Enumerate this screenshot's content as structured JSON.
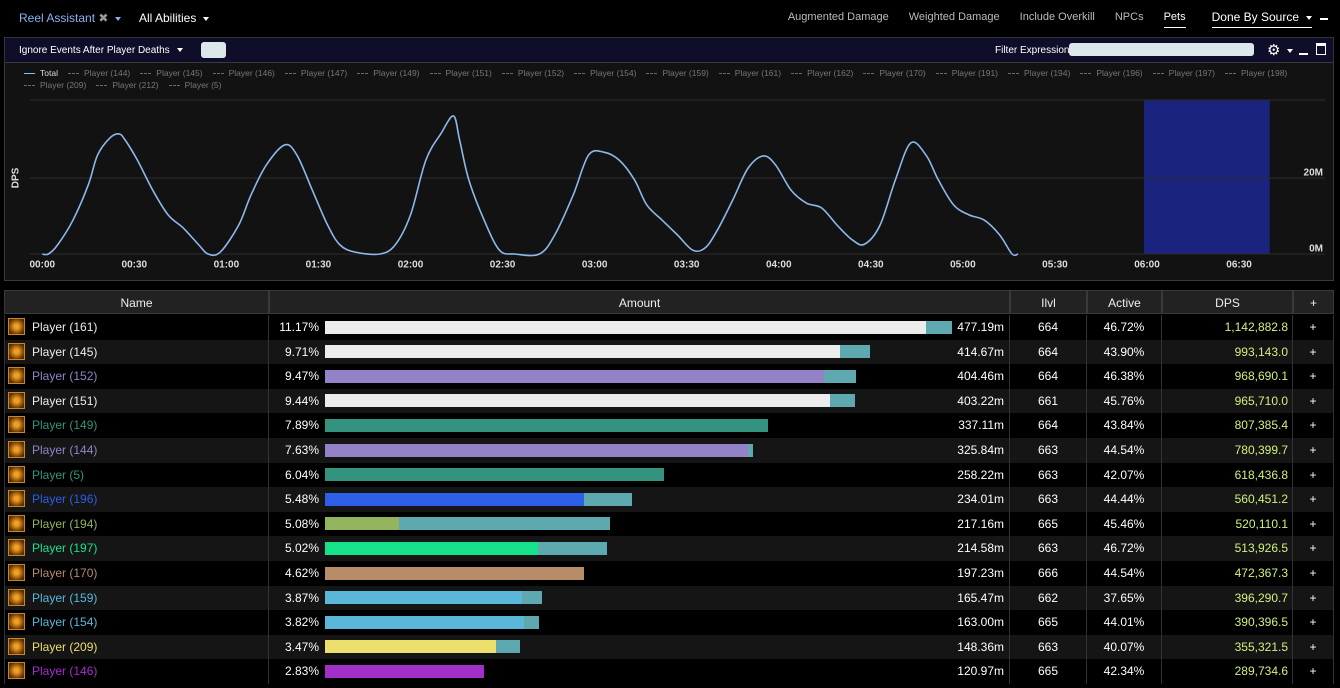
{
  "toolbar": {
    "report": "Reel Assistant",
    "close": "✖",
    "abilities": "All Abilities",
    "tabs": [
      "Augmented Damage",
      "Weighted Damage",
      "Include Overkill",
      "NPCs",
      "Pets"
    ],
    "active_tab": "Pets",
    "source": "Done By Source"
  },
  "filter_bar": {
    "deaths": "Ignore Events After Player Deaths",
    "filter_label": "Filter Expression:"
  },
  "graph": {
    "type": "line",
    "y_label": "DPS",
    "xlim": [
      -4,
      418
    ],
    "ylim": [
      0,
      40
    ],
    "xticks": [
      {
        "value": 0,
        "label": "00:00"
      },
      {
        "value": 30,
        "label": "00:30"
      },
      {
        "value": 60,
        "label": "01:00"
      },
      {
        "value": 90,
        "label": "01:30"
      },
      {
        "value": 120,
        "label": "02:00"
      },
      {
        "value": 150,
        "label": "02:30"
      },
      {
        "value": 180,
        "label": "03:00"
      },
      {
        "value": 210,
        "label": "03:30"
      },
      {
        "value": 240,
        "label": "04:00"
      },
      {
        "value": 270,
        "label": "04:30"
      },
      {
        "value": 300,
        "label": "05:00"
      },
      {
        "value": 330,
        "label": "05:30"
      },
      {
        "value": 360,
        "label": "06:00"
      },
      {
        "value": 390,
        "label": "06:30"
      }
    ],
    "yticks": [
      {
        "value": 0,
        "label": "0M"
      },
      {
        "value": 20,
        "label": "20M"
      }
    ],
    "grid": true,
    "selection": {
      "start": 359,
      "end": 400,
      "color": "#1a237e"
    },
    "series": [
      {
        "name": "Total",
        "color": "#8cb8ec",
        "x": [
          0,
          2,
          5,
          10,
          15,
          18,
          22,
          25,
          27,
          31,
          36,
          41,
          46,
          51,
          54,
          58,
          64,
          68,
          73,
          79,
          83,
          88,
          93,
          97,
          102,
          110,
          115,
          120,
          125,
          130,
          134,
          136,
          139,
          144,
          149,
          154,
          162,
          167,
          173,
          178,
          183,
          188,
          193,
          197,
          202,
          207,
          212,
          216,
          220,
          225,
          230,
          235,
          239,
          244,
          249,
          254,
          259,
          264,
          268,
          273,
          278,
          283,
          288,
          292,
          297,
          302,
          307,
          312,
          316,
          318
        ],
        "values": [
          0,
          0,
          2.4,
          8.9,
          18.2,
          26,
          30.5,
          31.6,
          30,
          24.7,
          16.8,
          10.3,
          6.8,
          2.4,
          0,
          0.5,
          7.6,
          15.5,
          23.4,
          28.7,
          26,
          16.8,
          7.6,
          2.4,
          0.5,
          0,
          2.4,
          10.3,
          24.7,
          31.8,
          36.3,
          30,
          19.5,
          8.9,
          1,
          0,
          0,
          5,
          15.5,
          26,
          26.8,
          24.7,
          19.5,
          12.9,
          8.9,
          5,
          1,
          1.6,
          6.3,
          14.2,
          22.6,
          25.8,
          23.4,
          16.8,
          13.4,
          12.1,
          7.6,
          3.7,
          2.6,
          7.6,
          19.5,
          29.2,
          26,
          19.5,
          12.9,
          10.3,
          8.9,
          5,
          0,
          0
        ]
      },
      {
        "name": "Player (144)",
        "color": "#6a6a6a"
      },
      {
        "name": "Player (145)",
        "color": "#6a6a6a"
      },
      {
        "name": "Player (146)",
        "color": "#6a6a6a"
      },
      {
        "name": "Player (147)",
        "color": "#6a6a6a"
      },
      {
        "name": "Player (149)",
        "color": "#6a6a6a"
      },
      {
        "name": "Player (151)",
        "color": "#6a6a6a"
      },
      {
        "name": "Player (152)",
        "color": "#6a6a6a"
      },
      {
        "name": "Player (154)",
        "color": "#6a6a6a"
      },
      {
        "name": "Player (159)",
        "color": "#6a6a6a"
      },
      {
        "name": "Player (161)",
        "color": "#6a6a6a"
      },
      {
        "name": "Player (162)",
        "color": "#6a6a6a"
      },
      {
        "name": "Player (170)",
        "color": "#6a6a6a"
      },
      {
        "name": "Player (191)",
        "color": "#6a6a6a"
      },
      {
        "name": "Player (194)",
        "color": "#6a6a6a"
      },
      {
        "name": "Player (196)",
        "color": "#6a6a6a"
      },
      {
        "name": "Player (197)",
        "color": "#6a6a6a"
      },
      {
        "name": "Player (198)",
        "color": "#6a6a6a"
      },
      {
        "name": "Player (209)",
        "color": "#6a6a6a"
      },
      {
        "name": "Player (212)",
        "color": "#6a6a6a"
      },
      {
        "name": "Player (5)",
        "color": "#6a6a6a"
      }
    ]
  },
  "table": {
    "columns": [
      "Name",
      "Amount",
      "Ilvl",
      "Active",
      "DPS",
      "+"
    ],
    "pet_color": "#5ea8b0",
    "rows": [
      {
        "name": "Player (161)",
        "color": "#ececec",
        "percent": "11.17%",
        "segments": [
          10.71,
          0.46
        ],
        "amount": "477.19m",
        "ilvl": "664",
        "active": "46.72%",
        "dps": "1,142,882.8",
        "action": "+"
      },
      {
        "name": "Player (145)",
        "color": "#ececec",
        "percent": "9.71%",
        "segments": [
          9.18,
          0.53
        ],
        "amount": "414.67m",
        "ilvl": "664",
        "active": "43.90%",
        "dps": "993,143.0",
        "action": "+"
      },
      {
        "name": "Player (152)",
        "color": "#9482c9",
        "percent": "9.47%",
        "segments": [
          8.89,
          0.58
        ],
        "amount": "404.46m",
        "ilvl": "664",
        "active": "46.38%",
        "dps": "968,690.1",
        "action": "+"
      },
      {
        "name": "Player (151)",
        "color": "#ececec",
        "percent": "9.44%",
        "segments": [
          9.0,
          0.44
        ],
        "amount": "403.22m",
        "ilvl": "661",
        "active": "45.76%",
        "dps": "965,710.0",
        "action": "+"
      },
      {
        "name": "Player (149)",
        "color": "#33937f",
        "percent": "7.89%",
        "segments": [
          7.89,
          0
        ],
        "amount": "337.11m",
        "ilvl": "664",
        "active": "43.84%",
        "dps": "807,385.4",
        "action": "+"
      },
      {
        "name": "Player (144)",
        "color": "#9482c9",
        "percent": "7.63%",
        "segments": [
          7.54,
          0.09
        ],
        "amount": "325.84m",
        "ilvl": "663",
        "active": "44.54%",
        "dps": "780,399.7",
        "action": "+"
      },
      {
        "name": "Player (5)",
        "color": "#33937f",
        "percent": "6.04%",
        "segments": [
          6.04,
          0
        ],
        "amount": "258.22m",
        "ilvl": "663",
        "active": "42.07%",
        "dps": "618,436.8",
        "action": "+"
      },
      {
        "name": "Player (196)",
        "color": "#2c5ee8",
        "percent": "5.48%",
        "segments": [
          4.62,
          0.86
        ],
        "amount": "234.01m",
        "ilvl": "663",
        "active": "44.44%",
        "dps": "560,451.2",
        "action": "+"
      },
      {
        "name": "Player (194)",
        "color": "#93b35c",
        "percent": "5.08%",
        "segments": [
          1.32,
          3.76
        ],
        "amount": "217.16m",
        "ilvl": "665",
        "active": "45.46%",
        "dps": "520,110.1",
        "action": "+"
      },
      {
        "name": "Player (197)",
        "color": "#16e28c",
        "percent": "5.02%",
        "segments": [
          3.8,
          1.22
        ],
        "amount": "214.58m",
        "ilvl": "663",
        "active": "46.72%",
        "dps": "513,926.5",
        "action": "+"
      },
      {
        "name": "Player (170)",
        "color": "#b78c68",
        "percent": "4.62%",
        "segments": [
          4.62,
          0
        ],
        "amount": "197.23m",
        "ilvl": "666",
        "active": "44.54%",
        "dps": "472,367.3",
        "action": "+"
      },
      {
        "name": "Player (159)",
        "color": "#5bb7d9",
        "percent": "3.87%",
        "segments": [
          3.51,
          0.36
        ],
        "amount": "165.47m",
        "ilvl": "662",
        "active": "37.65%",
        "dps": "396,290.7",
        "action": "+"
      },
      {
        "name": "Player (154)",
        "color": "#5bb7d9",
        "percent": "3.82%",
        "segments": [
          3.55,
          0.27
        ],
        "amount": "163.00m",
        "ilvl": "665",
        "active": "44.01%",
        "dps": "390,396.5",
        "action": "+"
      },
      {
        "name": "Player (209)",
        "color": "#ecdf6b",
        "percent": "3.47%",
        "segments": [
          3.05,
          0.42
        ],
        "amount": "148.36m",
        "ilvl": "663",
        "active": "40.07%",
        "dps": "355,321.5",
        "action": "+"
      },
      {
        "name": "Player (146)",
        "color": "#a32fc9",
        "percent": "2.83%",
        "segments": [
          2.83,
          0
        ],
        "amount": "120.97m",
        "ilvl": "665",
        "active": "42.34%",
        "dps": "289,734.6",
        "action": "+"
      }
    ]
  }
}
